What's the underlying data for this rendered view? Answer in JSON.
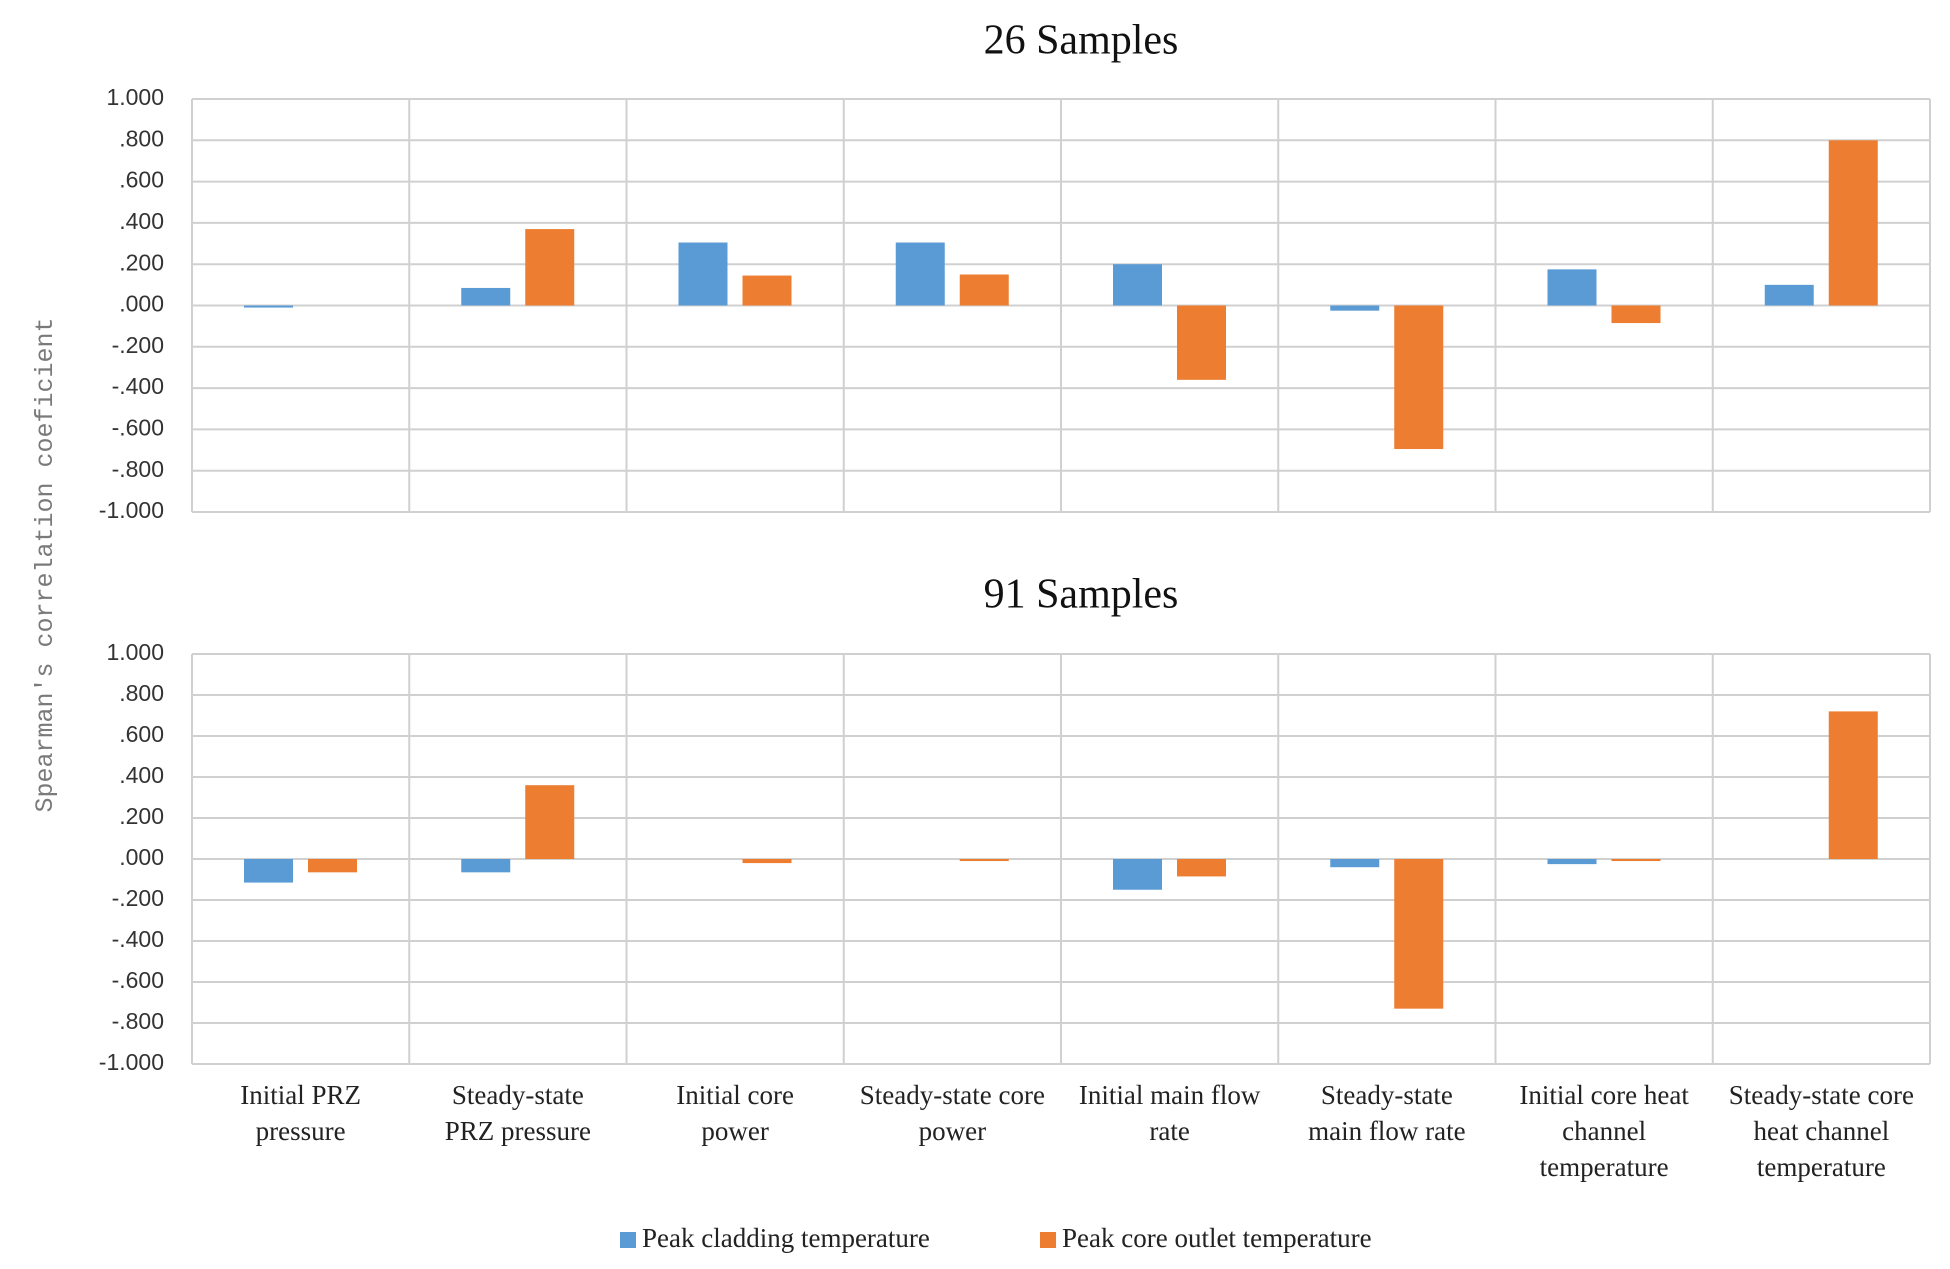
{
  "chart_data": {
    "type": "bar",
    "ylabel": "Spearman's correlation coeficient",
    "ylim": [
      -1,
      1
    ],
    "yticks": [
      1,
      0.8,
      0.6,
      0.4,
      0.2,
      0,
      -0.2,
      -0.4,
      -0.6,
      -0.8,
      -1
    ],
    "ytick_labels": [
      "1.000",
      ".800",
      ".600",
      ".400",
      ".200",
      ".000",
      "-.200",
      "-.400",
      "-.600",
      "-.800",
      "-1.000"
    ],
    "grid": true,
    "categories": [
      [
        "Initial PRZ",
        "pressure"
      ],
      [
        "Steady-state",
        "PRZ pressure"
      ],
      [
        "Initial core",
        "power"
      ],
      [
        "Steady-state core",
        "power"
      ],
      [
        "Initial main flow",
        "rate"
      ],
      [
        "Steady-state",
        "main flow rate"
      ],
      [
        "Initial core heat",
        "channel",
        "temperature"
      ],
      [
        "Steady-state core",
        "heat channel",
        "temperature"
      ]
    ],
    "series_names": [
      "Peak cladding temperature",
      "Peak core outlet temperature"
    ],
    "series_colors": [
      "#5b9bd5",
      "#ed7d31"
    ],
    "legend_position": "bottom",
    "panels": [
      {
        "title": "26 Samples",
        "series": [
          {
            "name": "Peak cladding temperature",
            "values": [
              -0.01,
              0.085,
              0.305,
              0.305,
              0.2,
              -0.025,
              0.175,
              0.1
            ]
          },
          {
            "name": "Peak core outlet temperature",
            "values": [
              0.0,
              0.37,
              0.145,
              0.15,
              -0.36,
              -0.695,
              -0.085,
              0.8
            ]
          }
        ]
      },
      {
        "title": "91 Samples",
        "series": [
          {
            "name": "Peak cladding temperature",
            "values": [
              -0.115,
              -0.065,
              0.0,
              0.0,
              -0.15,
              -0.04,
              -0.025,
              0.0
            ]
          },
          {
            "name": "Peak core outlet temperature",
            "values": [
              -0.065,
              0.36,
              -0.02,
              -0.01,
              -0.085,
              -0.73,
              -0.01,
              0.72
            ]
          }
        ]
      }
    ]
  }
}
